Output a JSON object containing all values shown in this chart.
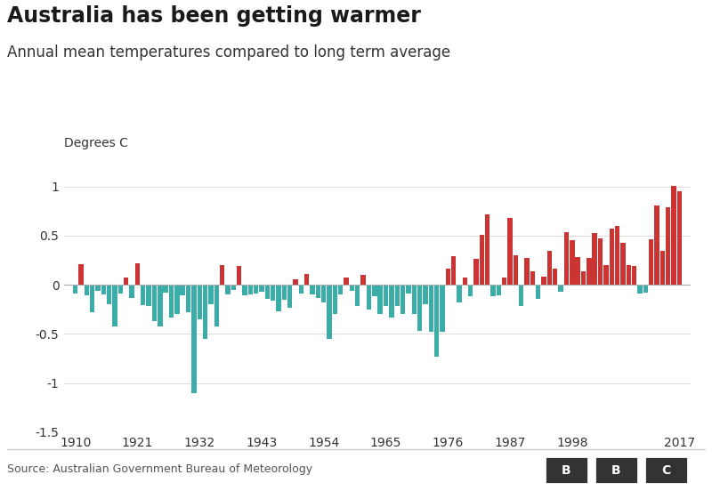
{
  "title": "Australia has been getting warmer",
  "subtitle": "Annual mean temperatures compared to long term average",
  "ylabel": "Degrees C",
  "source": "Source: Australian Government Bureau of Meteorology",
  "years": [
    1910,
    1911,
    1912,
    1913,
    1914,
    1915,
    1916,
    1917,
    1918,
    1919,
    1920,
    1921,
    1922,
    1923,
    1924,
    1925,
    1926,
    1927,
    1928,
    1929,
    1930,
    1931,
    1932,
    1933,
    1934,
    1935,
    1936,
    1937,
    1938,
    1939,
    1940,
    1941,
    1942,
    1943,
    1944,
    1945,
    1946,
    1947,
    1948,
    1949,
    1950,
    1951,
    1952,
    1953,
    1954,
    1955,
    1956,
    1957,
    1958,
    1959,
    1960,
    1961,
    1962,
    1963,
    1964,
    1965,
    1966,
    1967,
    1968,
    1969,
    1970,
    1971,
    1972,
    1973,
    1974,
    1975,
    1976,
    1977,
    1978,
    1979,
    1980,
    1981,
    1982,
    1983,
    1984,
    1985,
    1986,
    1987,
    1988,
    1989,
    1990,
    1991,
    1992,
    1993,
    1994,
    1995,
    1996,
    1997,
    1998,
    1999,
    2000,
    2001,
    2002,
    2003,
    2004,
    2005,
    2006,
    2007,
    2008,
    2009,
    2010,
    2011,
    2012,
    2013,
    2014,
    2015,
    2016,
    2017
  ],
  "values": [
    -0.09,
    0.21,
    -0.11,
    -0.28,
    -0.06,
    -0.1,
    -0.2,
    -0.42,
    -0.09,
    0.07,
    -0.13,
    0.22,
    -0.21,
    -0.22,
    -0.37,
    -0.42,
    -0.08,
    -0.33,
    -0.3,
    -0.11,
    -0.28,
    -1.1,
    -0.35,
    -0.55,
    -0.2,
    -0.42,
    0.2,
    -0.1,
    -0.05,
    0.19,
    -0.11,
    -0.1,
    -0.09,
    -0.07,
    -0.14,
    -0.16,
    -0.27,
    -0.15,
    -0.23,
    0.06,
    -0.09,
    0.11,
    -0.1,
    -0.13,
    -0.18,
    -0.55,
    -0.3,
    -0.1,
    0.07,
    -0.06,
    -0.22,
    0.1,
    -0.25,
    -0.12,
    -0.3,
    -0.22,
    -0.33,
    -0.22,
    -0.3,
    -0.09,
    -0.3,
    -0.47,
    -0.2,
    -0.48,
    -0.73,
    -0.48,
    0.16,
    0.29,
    -0.18,
    0.07,
    -0.12,
    0.26,
    0.51,
    0.72,
    -0.12,
    -0.11,
    0.07,
    0.68,
    0.3,
    -0.22,
    0.27,
    0.14,
    -0.14,
    0.08,
    0.35,
    0.16,
    -0.07,
    0.54,
    0.45,
    0.28,
    0.14,
    0.27,
    0.53,
    0.47,
    0.2,
    0.57,
    0.6,
    0.43,
    0.2,
    0.19,
    -0.09,
    -0.08,
    0.46,
    0.81,
    0.35,
    0.79,
    1.01,
    0.95
  ],
  "color_positive": "#cc3333",
  "color_negative": "#3aada8",
  "ylim": [
    -1.5,
    1.25
  ],
  "yticks": [
    -1.5,
    -1.0,
    -0.5,
    0.0,
    0.5,
    1.0
  ],
  "xticks": [
    1910,
    1921,
    1932,
    1943,
    1954,
    1965,
    1976,
    1987,
    1998,
    2017
  ],
  "background_color": "#ffffff",
  "title_fontsize": 17,
  "subtitle_fontsize": 12,
  "ylabel_fontsize": 10,
  "source_fontsize": 9,
  "tick_fontsize": 10
}
